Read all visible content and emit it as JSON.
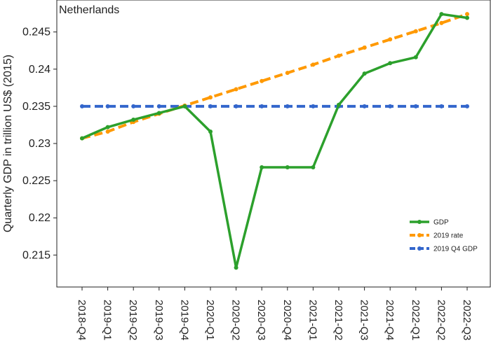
{
  "chart_data": {
    "type": "line",
    "title": "Netherlands",
    "ylabel": "Quarterly GDP in trillion US$ (2015)",
    "xlabel": "",
    "categories": [
      "2018-Q4",
      "2019-Q1",
      "2019-Q2",
      "2019-Q3",
      "2019-Q4",
      "2020-Q1",
      "2020-Q2",
      "2020-Q3",
      "2020-Q4",
      "2021-Q1",
      "2021-Q2",
      "2021-Q3",
      "2021-Q4",
      "2022-Q1",
      "2022-Q2",
      "2022-Q3"
    ],
    "y_ticks": [
      "0.215",
      "0.22",
      "0.225",
      "0.23",
      "0.235",
      "0.24",
      "0.245"
    ],
    "ylim": [
      0.2107,
      0.2493
    ],
    "grid": false,
    "legend_position": "bottom-right",
    "series": [
      {
        "name": "GDP",
        "color": "#2ca02c",
        "style": "solid",
        "values": [
          0.2307,
          0.2322,
          0.2332,
          0.2341,
          0.235,
          0.2316,
          0.2133,
          0.2268,
          0.2268,
          0.2268,
          0.2352,
          0.2394,
          0.2408,
          0.2416,
          0.2474,
          0.2469
        ]
      },
      {
        "name": "2019 rate",
        "color": "#ff9900",
        "style": "dashed",
        "values": [
          0.2307,
          0.2316,
          0.2329,
          0.234,
          0.2351,
          0.2362,
          0.2373,
          0.2384,
          0.2395,
          0.2406,
          0.2418,
          0.2429,
          0.244,
          0.2451,
          0.2462,
          0.2474
        ]
      },
      {
        "name": "2019 Q4 GDP",
        "color": "#3366cc",
        "style": "dashed",
        "values": [
          0.235,
          0.235,
          0.235,
          0.235,
          0.235,
          0.235,
          0.235,
          0.235,
          0.235,
          0.235,
          0.235,
          0.235,
          0.235,
          0.235,
          0.235,
          0.235
        ]
      }
    ]
  }
}
